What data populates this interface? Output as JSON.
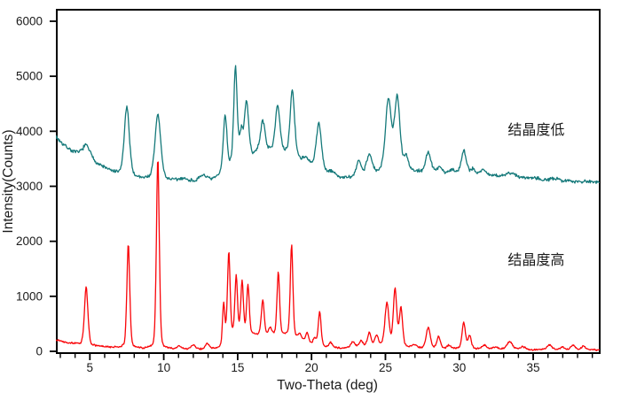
{
  "chart_data": {
    "type": "line",
    "title": "",
    "xlabel": "Two-Theta (deg)",
    "ylabel": "Intensity(Counts)",
    "xlim": [
      2.7,
      39.5
    ],
    "ylim": [
      0,
      6240
    ],
    "grid": false,
    "x_major_ticks": [
      5,
      10,
      15,
      20,
      25,
      30,
      35
    ],
    "x_minor_ticks": {
      "start": 3,
      "end": 39,
      "step": 1
    },
    "y_major_ticks": [
      0,
      1000,
      2000,
      3000,
      4000,
      5000,
      6000
    ],
    "frame": {
      "color": "#000000"
    },
    "series": [
      {
        "name": "结晶度低",
        "meaning": "low crystallinity",
        "color": "#15797a",
        "noise_amplitude": 24,
        "seed": 7,
        "annotation_anchor": {
          "x": 35.2,
          "y": 4020
        },
        "baseline_points": [
          [
            2.7,
            3900
          ],
          [
            3.2,
            3760
          ],
          [
            3.8,
            3640
          ],
          [
            4.4,
            3570
          ],
          [
            5.0,
            3510
          ],
          [
            5.6,
            3400
          ],
          [
            6.4,
            3280
          ],
          [
            7.2,
            3200
          ],
          [
            8.0,
            3160
          ],
          [
            9.0,
            3140
          ],
          [
            10.0,
            3120
          ],
          [
            11.0,
            3108
          ],
          [
            12.2,
            3105
          ],
          [
            13.2,
            3110
          ],
          [
            14.0,
            3230
          ],
          [
            14.8,
            3420
          ],
          [
            15.6,
            3520
          ],
          [
            16.4,
            3630
          ],
          [
            17.2,
            3655
          ],
          [
            18.0,
            3625
          ],
          [
            18.8,
            3550
          ],
          [
            19.6,
            3450
          ],
          [
            20.4,
            3330
          ],
          [
            21.2,
            3215
          ],
          [
            22.0,
            3160
          ],
          [
            22.8,
            3150
          ],
          [
            23.6,
            3175
          ],
          [
            24.4,
            3230
          ],
          [
            25.2,
            3285
          ],
          [
            26.2,
            3285
          ],
          [
            27.2,
            3265
          ],
          [
            28.2,
            3255
          ],
          [
            29.2,
            3245
          ],
          [
            30.2,
            3240
          ],
          [
            31.2,
            3225
          ],
          [
            32.2,
            3195
          ],
          [
            33.2,
            3170
          ],
          [
            34.2,
            3150
          ],
          [
            35.2,
            3130
          ],
          [
            36.2,
            3112
          ],
          [
            37.2,
            3100
          ],
          [
            38.2,
            3090
          ],
          [
            39.5,
            3082
          ]
        ],
        "peaks": [
          [
            4.75,
            210,
            0.26
          ],
          [
            7.5,
            1250,
            0.18
          ],
          [
            9.6,
            1180,
            0.2
          ],
          [
            11.3,
            40,
            0.2
          ],
          [
            12.7,
            105,
            0.22
          ],
          [
            14.15,
            1020,
            0.13
          ],
          [
            14.85,
            1710,
            0.12
          ],
          [
            15.25,
            480,
            0.12
          ],
          [
            15.6,
            1030,
            0.14
          ],
          [
            16.7,
            550,
            0.16
          ],
          [
            17.7,
            830,
            0.16
          ],
          [
            18.7,
            1200,
            0.15
          ],
          [
            19.6,
            60,
            0.15
          ],
          [
            20.5,
            830,
            0.18
          ],
          [
            21.4,
            70,
            0.18
          ],
          [
            23.2,
            300,
            0.18
          ],
          [
            23.9,
            380,
            0.2
          ],
          [
            25.2,
            1300,
            0.2
          ],
          [
            25.8,
            1330,
            0.19
          ],
          [
            26.4,
            250,
            0.15
          ],
          [
            27.9,
            360,
            0.18
          ],
          [
            28.65,
            110,
            0.15
          ],
          [
            29.5,
            60,
            0.15
          ],
          [
            30.3,
            420,
            0.17
          ],
          [
            30.9,
            80,
            0.15
          ],
          [
            31.6,
            90,
            0.18
          ],
          [
            33.5,
            70,
            0.4
          ],
          [
            35.0,
            30,
            0.3
          ],
          [
            36.5,
            25,
            0.3
          ]
        ]
      },
      {
        "name": "结晶度高",
        "meaning": "high crystallinity",
        "color": "#f90509",
        "noise_amplitude": 10,
        "seed": 13,
        "annotation_anchor": {
          "x": 35.2,
          "y": 1660
        },
        "baseline_points": [
          [
            2.7,
            215
          ],
          [
            3.4,
            165
          ],
          [
            4.2,
            130
          ],
          [
            5.0,
            105
          ],
          [
            6.0,
            85
          ],
          [
            7.0,
            72
          ],
          [
            8.5,
            62
          ],
          [
            10.0,
            48
          ],
          [
            11.5,
            40
          ],
          [
            13.0,
            42
          ],
          [
            13.9,
            70
          ],
          [
            14.3,
            270
          ],
          [
            15.2,
            320
          ],
          [
            16.2,
            300
          ],
          [
            17.4,
            300
          ],
          [
            18.5,
            300
          ],
          [
            19.3,
            210
          ],
          [
            20.0,
            120
          ],
          [
            21.0,
            70
          ],
          [
            22.0,
            62
          ],
          [
            23.0,
            70
          ],
          [
            24.0,
            80
          ],
          [
            25.0,
            95
          ],
          [
            26.5,
            80
          ],
          [
            27.5,
            60
          ],
          [
            28.5,
            55
          ],
          [
            29.5,
            50
          ],
          [
            30.5,
            48
          ],
          [
            31.5,
            42
          ],
          [
            32.5,
            38
          ],
          [
            33.5,
            35
          ],
          [
            35.0,
            28
          ],
          [
            36.5,
            28
          ],
          [
            38.0,
            26
          ],
          [
            39.5,
            25
          ]
        ],
        "peaks": [
          [
            4.75,
            1060,
            0.12
          ],
          [
            7.6,
            1880,
            0.1
          ],
          [
            9.6,
            3470,
            0.1
          ],
          [
            11.05,
            60,
            0.15
          ],
          [
            12.0,
            80,
            0.15
          ],
          [
            12.95,
            105,
            0.13
          ],
          [
            14.05,
            730,
            0.08
          ],
          [
            14.4,
            1530,
            0.09
          ],
          [
            14.9,
            1060,
            0.09
          ],
          [
            15.3,
            950,
            0.09
          ],
          [
            15.7,
            900,
            0.09
          ],
          [
            16.7,
            640,
            0.1
          ],
          [
            17.2,
            130,
            0.1
          ],
          [
            17.75,
            1150,
            0.09
          ],
          [
            18.65,
            1670,
            0.09
          ],
          [
            19.2,
            100,
            0.1
          ],
          [
            19.7,
            170,
            0.12
          ],
          [
            20.2,
            130,
            0.1
          ],
          [
            20.55,
            630,
            0.1
          ],
          [
            21.3,
            90,
            0.12
          ],
          [
            22.8,
            100,
            0.15
          ],
          [
            23.35,
            120,
            0.13
          ],
          [
            23.9,
            250,
            0.13
          ],
          [
            24.4,
            200,
            0.13
          ],
          [
            25.1,
            780,
            0.14
          ],
          [
            25.65,
            1040,
            0.12
          ],
          [
            26.05,
            700,
            0.11
          ],
          [
            27.0,
            50,
            0.15
          ],
          [
            27.9,
            380,
            0.14
          ],
          [
            28.6,
            210,
            0.12
          ],
          [
            29.3,
            60,
            0.12
          ],
          [
            30.3,
            470,
            0.12
          ],
          [
            30.7,
            240,
            0.11
          ],
          [
            31.7,
            70,
            0.15
          ],
          [
            32.4,
            40,
            0.2
          ],
          [
            33.4,
            140,
            0.2
          ],
          [
            34.3,
            50,
            0.2
          ],
          [
            36.1,
            90,
            0.18
          ],
          [
            37.0,
            50,
            0.15
          ],
          [
            37.7,
            90,
            0.14
          ],
          [
            38.4,
            70,
            0.14
          ]
        ]
      }
    ]
  }
}
